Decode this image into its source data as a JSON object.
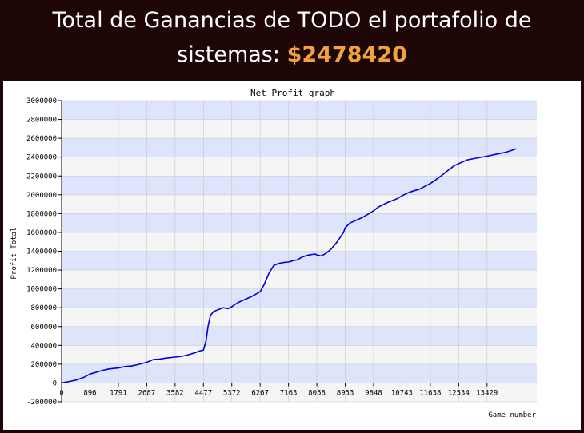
{
  "header": {
    "line1": "Total de Ganancias de TODO el portafolio de",
    "line2_prefix": "sistemas: ",
    "amount": "$2478420",
    "amount_color": "#f0a33a"
  },
  "chart_data": {
    "type": "line",
    "title": "Net Profit graph",
    "xlabel": "Game number",
    "ylabel": "Profit Total",
    "xlim": [
      0,
      15000
    ],
    "ylim": [
      -200000,
      3000000
    ],
    "x_ticks": [
      0,
      896,
      1791,
      2687,
      3582,
      4477,
      5372,
      6267,
      7163,
      8058,
      8953,
      9848,
      10743,
      11638,
      12534,
      13429
    ],
    "x_tick_labels": [
      "0",
      "896",
      "1791",
      "2687",
      "3582",
      "4477",
      "5372",
      "6267",
      "7163",
      "8058",
      "8953",
      "9848",
      "10743",
      "11638",
      "12534",
      "13429"
    ],
    "y_ticks": [
      -200000,
      0,
      200000,
      400000,
      600000,
      800000,
      1000000,
      1200000,
      1400000,
      1600000,
      1800000,
      2000000,
      2200000,
      2400000,
      2600000,
      2800000,
      3000000
    ],
    "y_tick_labels": [
      "-200000",
      "0",
      "200000",
      "400000",
      "600000",
      "800000",
      "1000000",
      "1200000",
      "1400000",
      "1600000",
      "1800000",
      "2000000",
      "2200000",
      "2400000",
      "2600000",
      "2800000",
      "3000000"
    ],
    "grid": true,
    "band_colors": [
      "#f5f5f5",
      "#dde4fb"
    ],
    "line_color": "#0000dd",
    "series": [
      {
        "x": [
          0,
          150,
          300,
          500,
          700,
          900,
          1100,
          1300,
          1500,
          1791,
          2000,
          2200,
          2400,
          2687,
          2900,
          3100,
          3300,
          3582,
          3800,
          4000,
          4200,
          4350,
          4477,
          4560,
          4620,
          4700,
          4800,
          4950,
          5100,
          5250,
          5372,
          5450,
          5600,
          5800,
          6000,
          6267,
          6400,
          6550,
          6700,
          6850,
          7000,
          7163,
          7300,
          7450,
          7600,
          7700,
          7800,
          8000,
          8058,
          8200,
          8350,
          8500,
          8700,
          8900,
          8953,
          9100,
          9300,
          9500,
          9700,
          9848,
          10000,
          10300,
          10600,
          10743,
          11000,
          11300,
          11638,
          11900,
          12200,
          12400,
          12534,
          12800,
          13100,
          13429,
          13700,
          14000,
          14200,
          14350
        ],
        "y": [
          0,
          10000,
          20000,
          35000,
          60000,
          95000,
          115000,
          135000,
          150000,
          160000,
          175000,
          180000,
          195000,
          220000,
          250000,
          255000,
          265000,
          275000,
          285000,
          300000,
          320000,
          340000,
          350000,
          450000,
          600000,
          720000,
          760000,
          780000,
          800000,
          790000,
          810000,
          830000,
          860000,
          890000,
          920000,
          970000,
          1050000,
          1170000,
          1250000,
          1270000,
          1280000,
          1285000,
          1300000,
          1310000,
          1340000,
          1350000,
          1360000,
          1370000,
          1360000,
          1350000,
          1380000,
          1420000,
          1500000,
          1600000,
          1650000,
          1700000,
          1730000,
          1760000,
          1800000,
          1830000,
          1870000,
          1920000,
          1960000,
          1990000,
          2030000,
          2060000,
          2120000,
          2180000,
          2260000,
          2310000,
          2330000,
          2370000,
          2390000,
          2410000,
          2430000,
          2450000,
          2470000,
          2490000
        ]
      }
    ]
  }
}
